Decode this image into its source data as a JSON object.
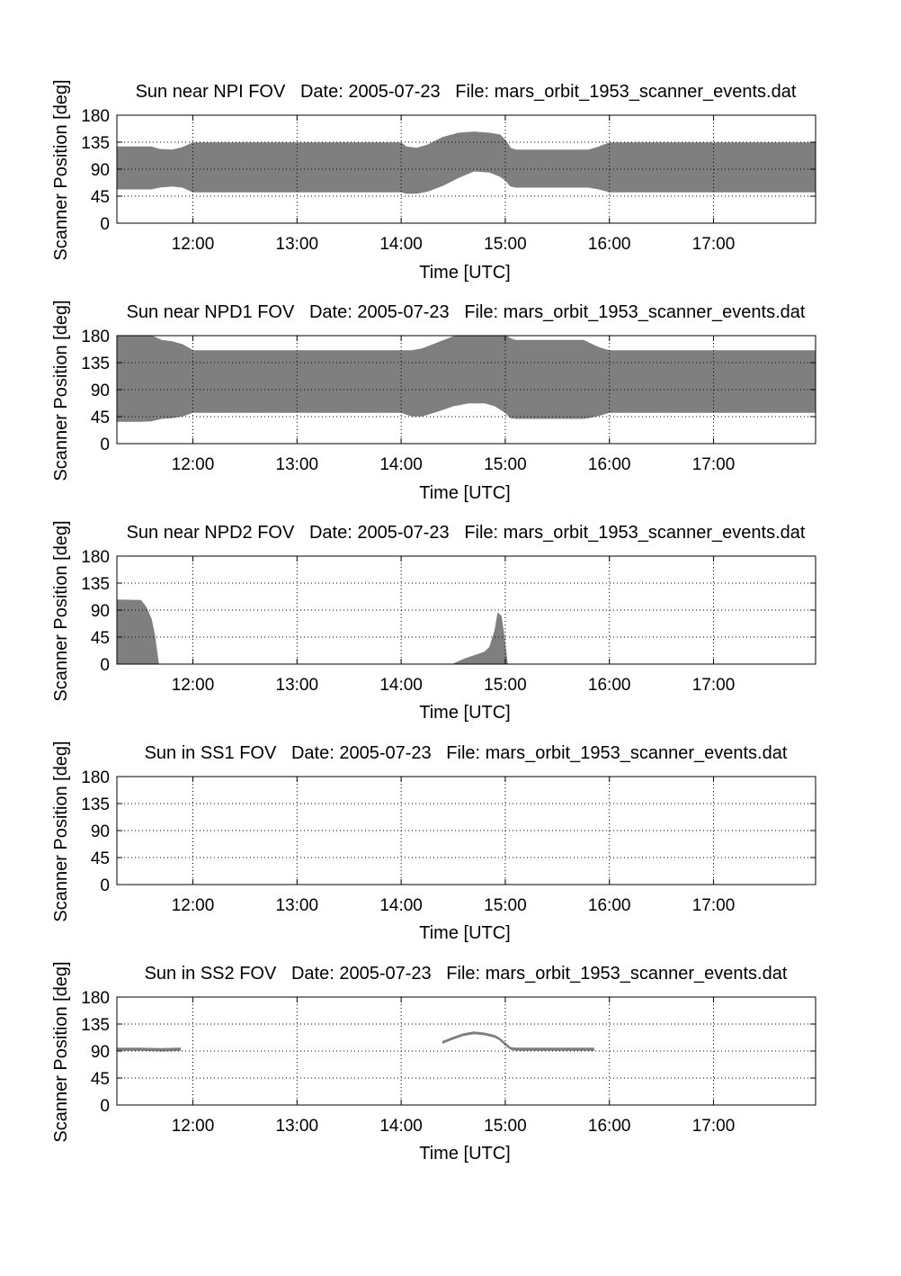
{
  "figure": {
    "background": "#ffffff",
    "fill_color": "#7f7f7f",
    "axis_color": "#000000",
    "grid_color": "#000000"
  },
  "chart_data": [
    {
      "type": "area",
      "title": "Sun near NPI FOV   Date: 2005-07-23   File: mars_orbit_1953_scanner_events.dat",
      "xlabel": "Time [UTC]",
      "ylabel": "Scanner Position [deg]",
      "x_unit": "hours UTC",
      "xlim": [
        11.27,
        17.98
      ],
      "ylim": [
        0,
        180
      ],
      "xticks": [
        12,
        13,
        14,
        15,
        16,
        17
      ],
      "xtick_labels": [
        "12:00",
        "13:00",
        "14:00",
        "15:00",
        "16:00",
        "17:00"
      ],
      "yticks": [
        0,
        45,
        90,
        135,
        180
      ],
      "ytick_labels": [
        "0",
        "45",
        "90",
        "135",
        "180"
      ],
      "grid": true,
      "bands": [
        {
          "x": [
            11.27,
            11.45,
            11.6,
            11.68,
            11.8,
            11.9,
            12.0,
            14.0,
            14.05,
            14.15,
            14.25,
            14.4,
            14.55,
            14.7,
            14.85,
            14.95,
            15.0,
            15.05,
            15.1,
            15.7,
            15.8,
            15.9,
            16.0,
            17.98
          ],
          "lower": [
            57,
            57,
            57,
            60,
            62,
            60,
            52,
            52,
            50,
            50,
            53,
            63,
            76,
            87,
            85,
            78,
            72,
            62,
            60,
            60,
            60,
            57,
            52,
            52
          ],
          "upper": [
            127,
            127,
            127,
            123,
            122,
            126,
            134,
            134,
            127,
            125,
            130,
            143,
            150,
            152,
            150,
            147,
            138,
            125,
            122,
            122,
            122,
            127,
            134,
            134
          ]
        }
      ]
    },
    {
      "type": "area",
      "title": "Sun near NPD1 FOV   Date: 2005-07-23   File: mars_orbit_1953_scanner_events.dat",
      "xlabel": "Time [UTC]",
      "ylabel": "Scanner Position [deg]",
      "x_unit": "hours UTC",
      "xlim": [
        11.27,
        17.98
      ],
      "ylim": [
        0,
        180
      ],
      "xticks": [
        12,
        13,
        14,
        15,
        16,
        17
      ],
      "xtick_labels": [
        "12:00",
        "13:00",
        "14:00",
        "15:00",
        "16:00",
        "17:00"
      ],
      "yticks": [
        0,
        45,
        90,
        135,
        180
      ],
      "ytick_labels": [
        "0",
        "45",
        "90",
        "135",
        "180"
      ],
      "grid": true,
      "bands": [
        {
          "x": [
            11.27,
            11.5,
            11.6,
            11.7,
            11.8,
            11.9,
            12.0,
            14.0,
            14.1,
            14.2,
            14.35,
            14.5,
            14.65,
            14.8,
            14.9,
            15.0,
            15.05,
            15.1,
            15.75,
            15.8,
            15.9,
            16.0,
            17.98
          ],
          "lower": [
            37,
            37,
            38,
            42,
            43,
            46,
            52,
            52,
            46,
            46,
            54,
            63,
            68,
            68,
            63,
            52,
            43,
            42,
            42,
            43,
            47,
            52,
            52
          ],
          "upper": [
            180,
            180,
            180,
            172,
            170,
            165,
            155,
            155,
            155,
            158,
            168,
            178,
            180,
            180,
            180,
            180,
            175,
            172,
            172,
            168,
            160,
            155,
            155
          ]
        }
      ]
    },
    {
      "type": "area",
      "title": "Sun near NPD2 FOV   Date: 2005-07-23   File: mars_orbit_1953_scanner_events.dat",
      "xlabel": "Time [UTC]",
      "ylabel": "Scanner Position [deg]",
      "x_unit": "hours UTC",
      "xlim": [
        11.27,
        17.98
      ],
      "ylim": [
        0,
        180
      ],
      "xticks": [
        12,
        13,
        14,
        15,
        16,
        17
      ],
      "xtick_labels": [
        "12:00",
        "13:00",
        "14:00",
        "15:00",
        "16:00",
        "17:00"
      ],
      "yticks": [
        0,
        45,
        90,
        135,
        180
      ],
      "ytick_labels": [
        "0",
        "45",
        "90",
        "135",
        "180"
      ],
      "grid": true,
      "bands": [
        {
          "x": [
            11.27,
            11.5,
            11.55,
            11.6,
            11.63,
            11.65,
            11.67
          ],
          "lower": [
            0,
            0,
            0,
            0,
            0,
            0,
            0
          ],
          "upper": [
            107,
            106,
            95,
            75,
            50,
            25,
            0
          ]
        },
        {
          "x": [
            14.5,
            14.6,
            14.7,
            14.8,
            14.85,
            14.9,
            14.93,
            14.96,
            14.99,
            15.02
          ],
          "lower": [
            0,
            0,
            0,
            0,
            0,
            0,
            0,
            0,
            0,
            0
          ],
          "upper": [
            0,
            8,
            14,
            20,
            28,
            55,
            85,
            80,
            45,
            0
          ]
        }
      ]
    },
    {
      "type": "area",
      "title": "Sun in SS1 FOV   Date: 2005-07-23   File: mars_orbit_1953_scanner_events.dat",
      "xlabel": "Time [UTC]",
      "ylabel": "Scanner Position [deg]",
      "x_unit": "hours UTC",
      "xlim": [
        11.27,
        17.98
      ],
      "ylim": [
        0,
        180
      ],
      "xticks": [
        12,
        13,
        14,
        15,
        16,
        17
      ],
      "xtick_labels": [
        "12:00",
        "13:00",
        "14:00",
        "15:00",
        "16:00",
        "17:00"
      ],
      "yticks": [
        0,
        45,
        90,
        135,
        180
      ],
      "ytick_labels": [
        "0",
        "45",
        "90",
        "135",
        "180"
      ],
      "grid": true,
      "bands": []
    },
    {
      "type": "area",
      "title": "Sun in SS2 FOV   Date: 2005-07-23   File: mars_orbit_1953_scanner_events.dat",
      "xlabel": "Time [UTC]",
      "ylabel": "Scanner Position [deg]",
      "x_unit": "hours UTC",
      "xlim": [
        11.27,
        17.98
      ],
      "ylim": [
        0,
        180
      ],
      "xticks": [
        12,
        13,
        14,
        15,
        16,
        17
      ],
      "xtick_labels": [
        "12:00",
        "13:00",
        "14:00",
        "15:00",
        "16:00",
        "17:00"
      ],
      "yticks": [
        0,
        45,
        90,
        135,
        180
      ],
      "ytick_labels": [
        "0",
        "45",
        "90",
        "135",
        "180"
      ],
      "grid": true,
      "bands": [
        {
          "x": [
            11.27,
            11.5,
            11.7,
            11.88
          ],
          "lower": [
            91,
            91,
            90,
            91
          ],
          "upper": [
            95,
            95,
            94,
            95
          ]
        },
        {
          "x": [
            14.4,
            14.5,
            14.6,
            14.7,
            14.8,
            14.9,
            14.95,
            15.0,
            15.05,
            15.1,
            15.5,
            15.85
          ],
          "lower": [
            103,
            110,
            116,
            119,
            117,
            113,
            108,
            100,
            93,
            91,
            91,
            91
          ],
          "upper": [
            106,
            113,
            119,
            122,
            120,
            116,
            111,
            103,
            96,
            95,
            95,
            95
          ]
        }
      ]
    }
  ]
}
